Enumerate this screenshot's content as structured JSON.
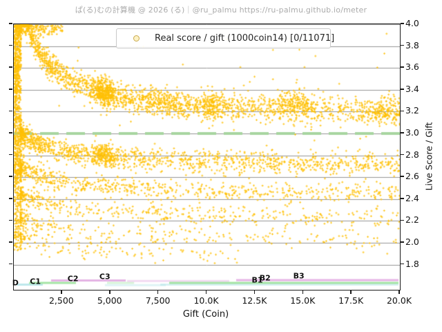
{
  "header": {
    "title": "ぱ(る)むの計算機 @ 2026 (る)｜@ru_palmu  https://ru-palmu.github.io/meter"
  },
  "legend": {
    "label": "Real score / gift (1000coin14) [0/11071]",
    "marker_fill": "#FDF2C4",
    "marker_edge": "#C9A94E"
  },
  "chart_data": {
    "type": "scatter",
    "title": "ぱ(る)むの計算機 @ 2026 (る)｜@ru_palmu  https://ru-palmu.github.io/meter",
    "xlabel": "Gift (Coin)",
    "ylabel": "Live Score / Gift",
    "xlim": [
      0,
      20000
    ],
    "ylim": [
      1.57,
      4.0
    ],
    "grid": true,
    "grid_color": "#949494",
    "legend_position": "upper center",
    "x_ticks": {
      "values": [
        2500,
        5000,
        7500,
        10000,
        12500,
        15000,
        17500,
        20000
      ],
      "labels": [
        "2,500",
        "5,000",
        "7,500",
        "10.0K",
        "12.5K",
        "15.0K",
        "17.5K",
        "20.0K"
      ]
    },
    "y_ticks": {
      "values": [
        4.0,
        3.8,
        3.6,
        3.4,
        3.2,
        3.0,
        2.8,
        2.6,
        2.4,
        2.2,
        2.0,
        1.8
      ],
      "labels": [
        "4.0",
        "3.8",
        "3.6",
        "3.4",
        "3.2",
        "3.0",
        "2.8",
        "2.6",
        "2.4",
        "2.2",
        "2.0",
        "1.8"
      ]
    },
    "marker": {
      "shape": "plus",
      "color": "#FFC107",
      "size": 3,
      "alpha": 0.85
    },
    "reference_line": {
      "y": 3.0,
      "color": "#A8D5A0",
      "width": 4,
      "dash": [
        27,
        11
      ]
    },
    "point_count": 11071,
    "seed": 42,
    "bands": [
      {
        "asymptote": 3.13,
        "amp": 1.62,
        "scale": 833,
        "n": 1900,
        "noise": 0.06,
        "xmin": 350,
        "xmax": 20000,
        "xpow": 2.8,
        "left_frac": 0.62
      },
      {
        "asymptote": 2.68,
        "amp": 0.38,
        "scale": 2000,
        "n": 1250,
        "noise": 0.05,
        "xmin": 350,
        "xmax": 20000,
        "xpow": 2.8,
        "left_frac": 0.62
      },
      {
        "asymptote": 2.42,
        "amp": 0.33,
        "scale": 2000,
        "n": 680,
        "noise": 0.045,
        "xmin": 350,
        "xmax": 20000,
        "xpow": 2.8,
        "left_frac": 0.62
      },
      {
        "asymptote": 2.2,
        "amp": 0.3,
        "scale": 2000,
        "n": 430,
        "noise": 0.045,
        "xmin": 350,
        "xmax": 20000,
        "xpow": 3.0,
        "left_frac": 0.68
      },
      {
        "asymptote": 2.0,
        "amp": 0.28,
        "scale": 2000,
        "n": 270,
        "noise": 0.05,
        "xmin": 350,
        "xmax": 20000,
        "xpow": 3.2,
        "left_frac": 0.75
      },
      {
        "asymptote": 1.86,
        "amp": 0.26,
        "scale": 1500,
        "n": 130,
        "noise": 0.05,
        "xmin": 350,
        "xmax": 12000,
        "xpow": 3.0,
        "left_frac": 0.8
      }
    ],
    "clusters": [
      {
        "band": 0,
        "x_mean": 4700,
        "x_sd": 300,
        "n": 300,
        "noise": 0.07,
        "dv": 0.0
      },
      {
        "band": 1,
        "x_mean": 4700,
        "x_sd": 300,
        "n": 180,
        "noise": 0.055,
        "dv": 0.0
      },
      {
        "band": 0,
        "x_mean": 10300,
        "x_sd": 350,
        "n": 130,
        "noise": 0.06,
        "dv": 0.0
      },
      {
        "band": 0,
        "x_mean": 14600,
        "x_sd": 550,
        "n": 170,
        "noise": 0.07,
        "dv": 0.06
      },
      {
        "band": 0,
        "x_mean": 19300,
        "x_sd": 500,
        "n": 110,
        "noise": 0.07,
        "dv": 0.02
      },
      {
        "band": 0,
        "x_mean": 7800,
        "x_sd": 700,
        "n": 140,
        "noise": 0.05,
        "dv": -0.02
      }
    ],
    "left_column": {
      "x_range": [
        30,
        380
      ],
      "n_full": 520,
      "v_full": [
        1.93,
        3.99
      ],
      "n_upper": 300,
      "v_upper": [
        2.55,
        3.99
      ],
      "n_top": 120,
      "v_top": [
        3.3,
        3.99
      ]
    },
    "top_edge": {
      "n": 170,
      "x_start": 120,
      "x_span": 2400,
      "xpow": 1.6,
      "v_base": 3.99,
      "v_drop": 0.045
    },
    "noise_points": {
      "n": 140,
      "x_range": [
        400,
        20000
      ],
      "v_range": [
        1.9,
        3.95
      ]
    },
    "rank_lines": [
      {
        "rank": "D",
        "color": "#AEE2E6",
        "alpha": 0.8,
        "x0": 140,
        "x1": 1500,
        "y": 1.617
      },
      {
        "rank": "C1",
        "color": "#8FDD8F",
        "alpha": 0.8,
        "x0": 790,
        "x1": 3220,
        "y": 1.633
      },
      {
        "rank": "C2",
        "color": "#DDA0DD",
        "alpha": 0.8,
        "x0": 1930,
        "x1": 5800,
        "y": 1.655
      },
      {
        "rank": "C3",
        "color": "#8FDD8F",
        "alpha": 0.35,
        "x0": 4830,
        "x1": 6230,
        "y": 1.633
      },
      {
        "rank": "C3",
        "color": "#AEE2E6",
        "alpha": 0.4,
        "x0": 4720,
        "x1": 7870,
        "y": 1.612
      },
      {
        "rank": "B1",
        "color": "#DDA0DD",
        "alpha": 0.4,
        "x0": 5870,
        "x1": 11160,
        "y": 1.65
      },
      {
        "rank": "B1",
        "color": "#AEE2E6",
        "alpha": 0.5,
        "x0": 7590,
        "x1": 19930,
        "y": 1.617
      },
      {
        "rank": "B2",
        "color": "#8FDD8F",
        "alpha": 0.8,
        "x0": 8050,
        "x1": 19930,
        "y": 1.633
      },
      {
        "rank": "B3",
        "color": "#DDA0DD",
        "alpha": 0.8,
        "x0": 11520,
        "x1": 19930,
        "y": 1.658
      }
    ],
    "rank_labels": [
      {
        "label": "D",
        "x": 120,
        "y": 1.627
      },
      {
        "label": "C1",
        "x": 1150,
        "y": 1.639
      },
      {
        "label": "C2",
        "x": 3100,
        "y": 1.665
      },
      {
        "label": "C3",
        "x": 4750,
        "y": 1.684
      },
      {
        "label": "B1",
        "x": 12650,
        "y": 1.652
      },
      {
        "label": "B2",
        "x": 13050,
        "y": 1.671
      },
      {
        "label": "B3",
        "x": 14800,
        "y": 1.69
      }
    ]
  }
}
